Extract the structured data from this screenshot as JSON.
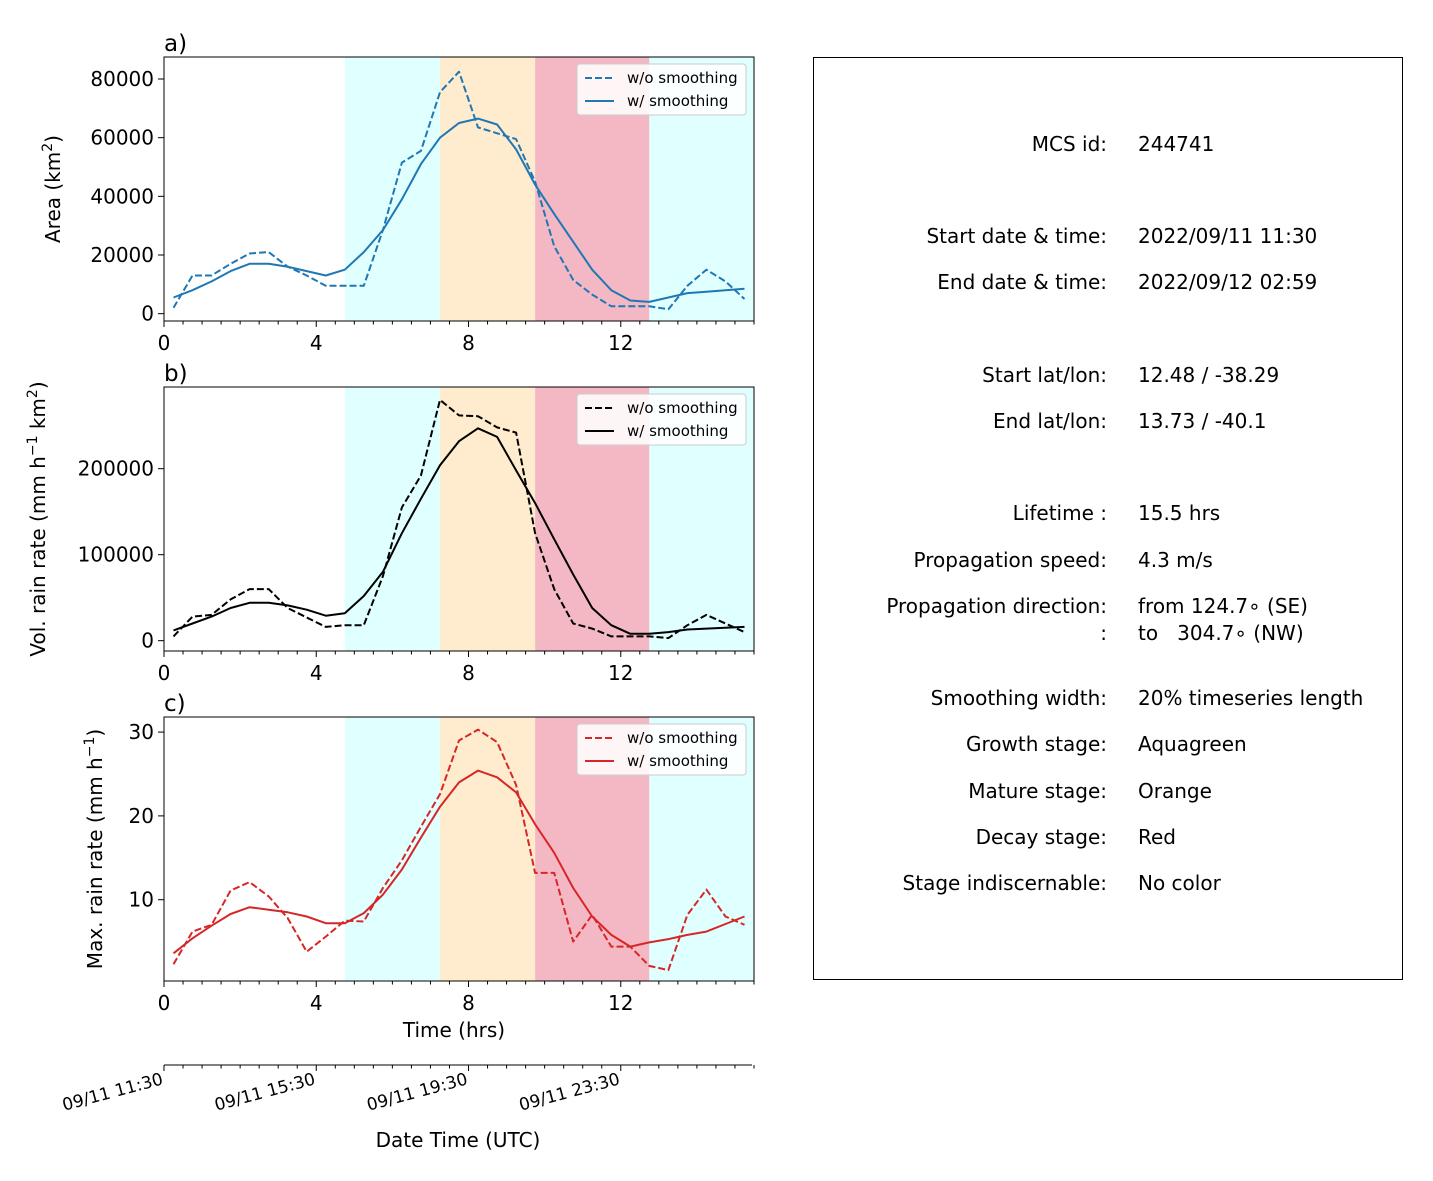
{
  "chart_data": [
    {
      "type": "line",
      "panel_label": "a)",
      "ylabel": "Area  (km",
      "ylabel_sup": "2",
      "ylabel_end": ")",
      "xlim": [
        0,
        15.5
      ],
      "ylim": [
        -2500,
        87500
      ],
      "xticks": [
        0,
        4,
        8,
        12
      ],
      "xtick_labels": [
        "0",
        "4",
        "8",
        "12"
      ],
      "yticks": [
        0,
        20000,
        40000,
        60000,
        80000
      ],
      "ytick_labels": [
        "0",
        "20000",
        "40000",
        "60000",
        "80000"
      ],
      "legend": "top-right",
      "series": [
        {
          "name": "w/o smoothing",
          "style": "dashed",
          "color": "#1f77b4",
          "x": [
            0.25,
            0.75,
            1.25,
            1.75,
            2.25,
            2.75,
            3.25,
            3.75,
            4.25,
            4.75,
            5.25,
            5.75,
            6.25,
            6.75,
            7.25,
            7.75,
            8.25,
            8.75,
            9.25,
            9.75,
            10.25,
            10.75,
            11.25,
            11.75,
            12.25,
            12.75,
            13.25,
            13.75,
            14.25,
            14.75,
            15.25
          ],
          "y": [
            2000,
            13000,
            13000,
            17000,
            20500,
            21000,
            16000,
            13000,
            9500,
            9500,
            9500,
            28500,
            51500,
            55500,
            75500,
            82500,
            63500,
            61500,
            59500,
            45000,
            23000,
            11500,
            6500,
            2500,
            2500,
            2500,
            1500,
            9500,
            15000,
            11000,
            5000
          ]
        },
        {
          "name": "w/ smoothing",
          "style": "solid",
          "color": "#1f77b4",
          "x": [
            0.25,
            0.75,
            1.25,
            1.75,
            2.25,
            2.75,
            3.25,
            3.75,
            4.25,
            4.75,
            5.25,
            5.75,
            6.25,
            6.75,
            7.25,
            7.75,
            8.25,
            8.75,
            9.25,
            9.75,
            10.25,
            10.75,
            11.25,
            11.75,
            12.25,
            12.75,
            13.25,
            13.75,
            14.25,
            14.75,
            15.25
          ],
          "y": [
            5500,
            8000,
            11000,
            14500,
            17000,
            17000,
            16000,
            14500,
            13000,
            15000,
            21000,
            28500,
            39000,
            51000,
            60000,
            65000,
            66500,
            64500,
            56000,
            44000,
            34000,
            24500,
            15000,
            8000,
            4500,
            4000,
            5500,
            7000,
            7500,
            8000,
            8500
          ]
        }
      ]
    },
    {
      "type": "line",
      "panel_label": "b)",
      "ylabel": "Vol. rain rate (mm h",
      "ylabel_sup": "−1",
      "ylabel_mid": " km",
      "ylabel_sup2": "2",
      "ylabel_end": ")",
      "xlim": [
        0,
        15.5
      ],
      "ylim": [
        -12000,
        295000
      ],
      "xticks": [
        0,
        4,
        8,
        12
      ],
      "xtick_labels": [
        "0",
        "4",
        "8",
        "12"
      ],
      "yticks": [
        0,
        100000,
        200000
      ],
      "ytick_labels": [
        "0",
        "100000",
        "200000"
      ],
      "legend": "top-right",
      "series": [
        {
          "name": "w/o smoothing",
          "style": "dashed",
          "color": "#000000",
          "x": [
            0.25,
            0.75,
            1.25,
            1.75,
            2.25,
            2.75,
            3.25,
            3.75,
            4.25,
            4.75,
            5.25,
            5.75,
            6.25,
            6.75,
            7.25,
            7.75,
            8.25,
            8.75,
            9.25,
            9.75,
            10.25,
            10.75,
            11.25,
            11.75,
            12.25,
            12.75,
            13.25,
            13.75,
            14.25,
            14.75,
            15.25
          ],
          "y": [
            5000,
            28000,
            30000,
            48000,
            60000,
            60000,
            38000,
            27000,
            16000,
            18000,
            18000,
            75000,
            155000,
            192000,
            280000,
            262000,
            261000,
            248000,
            242000,
            125000,
            60000,
            20000,
            14000,
            5000,
            5000,
            5000,
            3000,
            18000,
            30000,
            20000,
            10000
          ]
        },
        {
          "name": "w/ smoothing",
          "style": "solid",
          "color": "#000000",
          "x": [
            0.25,
            0.75,
            1.25,
            1.75,
            2.25,
            2.75,
            3.25,
            3.75,
            4.25,
            4.75,
            5.25,
            5.75,
            6.25,
            6.75,
            7.25,
            7.75,
            8.25,
            8.75,
            9.25,
            9.75,
            10.25,
            10.75,
            11.25,
            11.75,
            12.25,
            12.75,
            13.25,
            13.75,
            14.25,
            14.75,
            15.25
          ],
          "y": [
            12000,
            20000,
            28000,
            38000,
            44000,
            44000,
            41000,
            36000,
            29000,
            32000,
            52000,
            80000,
            125000,
            165000,
            204000,
            232000,
            247000,
            237000,
            198000,
            160000,
            118000,
            77000,
            38000,
            18000,
            8000,
            8000,
            10000,
            13000,
            14000,
            15000,
            16000
          ]
        }
      ]
    },
    {
      "type": "line",
      "panel_label": "c)",
      "ylabel": "Max. rain rate  (mm h",
      "ylabel_sup": "−1",
      "ylabel_end": ")",
      "xlabel": "Time (hrs)",
      "xlim": [
        0,
        15.5
      ],
      "ylim": [
        0.3,
        31.8
      ],
      "xticks": [
        0,
        4,
        8,
        12
      ],
      "xtick_labels": [
        "0",
        "4",
        "8",
        "12"
      ],
      "yticks": [
        10,
        20,
        30
      ],
      "ytick_labels": [
        "10",
        "20",
        "30"
      ],
      "legend": "top-right",
      "series": [
        {
          "name": "w/o smoothing",
          "style": "dashed",
          "color": "#d62728",
          "x": [
            0.25,
            0.75,
            1.25,
            1.75,
            2.25,
            2.75,
            3.25,
            3.75,
            4.25,
            4.75,
            5.25,
            5.75,
            6.25,
            6.75,
            7.25,
            7.75,
            8.25,
            8.75,
            9.25,
            9.75,
            10.25,
            10.75,
            11.25,
            11.75,
            12.25,
            12.75,
            13.25,
            13.75,
            14.25,
            14.75,
            15.25
          ],
          "y": [
            2.3,
            6.2,
            7.0,
            11.1,
            12.1,
            10.4,
            7.8,
            3.8,
            5.6,
            7.5,
            7.4,
            11.4,
            14.7,
            18.7,
            22.6,
            29.0,
            30.3,
            28.8,
            23.7,
            13.2,
            13.2,
            5.0,
            8.2,
            4.4,
            4.4,
            2.1,
            1.6,
            8.2,
            11.2,
            8.0,
            7.0
          ]
        },
        {
          "name": "w/ smoothing",
          "style": "solid",
          "color": "#d62728",
          "x": [
            0.25,
            0.75,
            1.25,
            1.75,
            2.25,
            2.75,
            3.25,
            3.75,
            4.25,
            4.75,
            5.25,
            5.75,
            6.25,
            6.75,
            7.25,
            7.75,
            8.25,
            8.75,
            9.25,
            9.75,
            10.25,
            10.75,
            11.25,
            11.75,
            12.25,
            12.75,
            13.25,
            13.75,
            14.25,
            14.75,
            15.25
          ],
          "y": [
            3.6,
            5.4,
            6.9,
            8.3,
            9.1,
            8.8,
            8.5,
            8.0,
            7.2,
            7.2,
            8.4,
            10.6,
            13.6,
            17.4,
            21.1,
            24.0,
            25.4,
            24.6,
            22.8,
            19.0,
            15.6,
            11.4,
            8.0,
            5.8,
            4.4,
            4.9,
            5.3,
            5.8,
            6.2,
            7.1,
            8.0
          ]
        }
      ]
    }
  ],
  "stages": [
    {
      "name": "Growth stage",
      "start": 4.75,
      "end": 7.25,
      "color": "#e0ffff"
    },
    {
      "name": "Mature stage",
      "start": 7.25,
      "end": 9.75,
      "color": "#ffecce"
    },
    {
      "name": "Decay stage",
      "start": 9.75,
      "end": 12.75,
      "color": "#f4b8c4"
    },
    {
      "name": "Growth stage",
      "start": 12.75,
      "end": 15.5,
      "color": "#e0ffff"
    }
  ],
  "date_axis": {
    "label": "Date Time (UTC)",
    "ticks": [
      {
        "x": 0,
        "label": "09/11 11:30"
      },
      {
        "x": 4,
        "label": "09/11 15:30"
      },
      {
        "x": 8,
        "label": "09/11 19:30"
      },
      {
        "x": 12,
        "label": "09/11 23:30"
      }
    ]
  },
  "info": {
    "rows": [
      {
        "label": "MCS id:",
        "value": "244741"
      },
      {
        "label": "Start date & time:",
        "value": "2022/09/11 11:30"
      },
      {
        "label": "End date & time:",
        "value": "2022/09/12 02:59"
      },
      {
        "label": "Start lat/lon:",
        "value": "12.48 / -38.29"
      },
      {
        "label": "End lat/lon:",
        "value": "13.73 / -40.1"
      },
      {
        "label": "Lifetime :",
        "value": "15.5 hrs"
      },
      {
        "label": "Propagation speed:",
        "value": "4.3 m/s"
      },
      {
        "label": "Propagation direction:",
        "value": "from 124.7∘ (SE)"
      },
      {
        "label": ":",
        "value": "to   304.7∘ (NW)"
      },
      {
        "label": "Smoothing width:",
        "value": "20% timeseries length"
      },
      {
        "label": "Growth stage:",
        "value": "Aquagreen"
      },
      {
        "label": "Mature stage:",
        "value": "Orange"
      },
      {
        "label": "Decay stage:",
        "value": "Red"
      },
      {
        "label": "Stage indiscernable:",
        "value": "No color"
      }
    ]
  }
}
